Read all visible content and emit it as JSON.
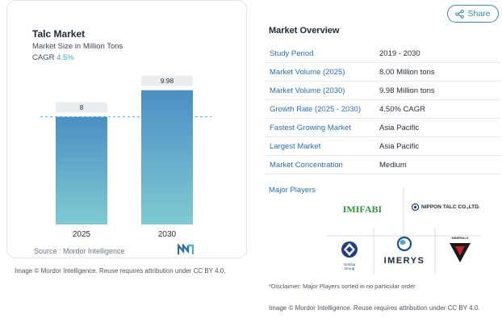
{
  "share": {
    "label": "Share",
    "icon": "share-icon"
  },
  "chart": {
    "title": "Talc Market",
    "subtitle": "Market Size in Million Tons",
    "cagr_label": "CAGR",
    "cagr_value": "4.5%",
    "source": "Source : Mordor Intelligence",
    "credit": "Image © Mordor Intelligence. Reuse requires attribution under CC BY 4.0."
  },
  "chart_data": {
    "type": "bar",
    "title": "Talc Market",
    "subtitle": "Market Size in Million Tons",
    "categories": [
      "2025",
      "2030"
    ],
    "values": [
      8,
      9.98
    ],
    "data_labels": [
      "8",
      "9.98"
    ],
    "ylim": [
      0,
      10.5
    ],
    "reference_line": 8,
    "grid": false,
    "colors": {
      "bar_top": "#4b8fc4",
      "bar_bottom": "#7ecbd1",
      "label_bg": "#e9eef3",
      "dash": "#5aaed0"
    }
  },
  "overview": {
    "title": "Market Overview",
    "rows": [
      {
        "key": "Study Period",
        "value": "2019 - 2030"
      },
      {
        "key": "Market Volume (2025)",
        "value": "8.00 Million tons"
      },
      {
        "key": "Market Volume (2030)",
        "value": "9.98 Million tons"
      },
      {
        "key": "Growth Rate (2025 - 2030)",
        "value": "4.50% CAGR"
      },
      {
        "key": "Fastest Growing Market",
        "value": "Asia Pacific"
      },
      {
        "key": "Largest Market",
        "value": "Asia Pacific"
      },
      {
        "key": "Market Concentration",
        "value": "Medium"
      }
    ],
    "players_title": "Major Players",
    "players": {
      "imifabi": "IMIFABI",
      "nippon": "NIPPON TALC CO.,LTD.",
      "golcha": "Golcha Group",
      "imerys": "IMERYS",
      "liaoning": "MINERALS"
    },
    "disclaimer": "*Disclaimer: Major Players sorted in no particular order",
    "credit": "Image © Mordor Intelligence. Reuse requires attribution under CC BY 4.0."
  }
}
